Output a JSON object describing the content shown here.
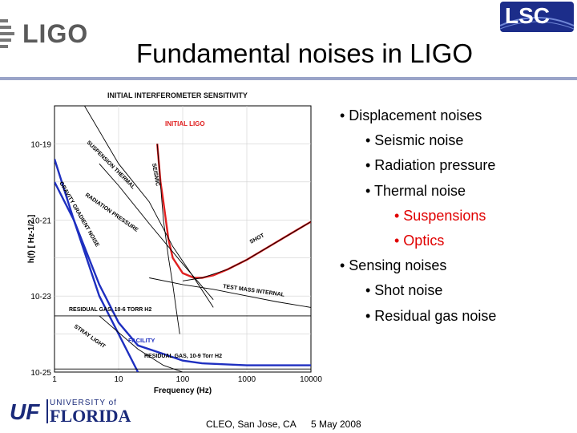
{
  "header": {
    "logo_left": "LIGO",
    "logo_right": "LSC",
    "title": "Fundamental noises in LIGO"
  },
  "bullets": [
    {
      "text": "• Displacement noises",
      "level": 0,
      "color": "#000000"
    },
    {
      "text": "• Seismic noise",
      "level": 1,
      "color": "#000000"
    },
    {
      "text": "• Radiation pressure",
      "level": 1,
      "color": "#000000"
    },
    {
      "text": "• Thermal noise",
      "level": 1,
      "color": "#000000"
    },
    {
      "text": "• Suspensions",
      "level": 2,
      "color": "#e00000"
    },
    {
      "text": "• Optics",
      "level": 2,
      "color": "#e00000"
    },
    {
      "text": "• Sensing noises",
      "level": 0,
      "color": "#000000"
    },
    {
      "text": "• Shot noise",
      "level": 1,
      "color": "#000000"
    },
    {
      "text": "• Residual gas noise",
      "level": 1,
      "color": "#000000"
    }
  ],
  "footer": {
    "conference": "CLEO, San Jose, CA",
    "date": "5 May 2008",
    "university_small": "UNIVERSITY of",
    "university_big": "FLORIDA",
    "university_letters": "UF"
  },
  "chart_data": {
    "type": "line",
    "title": "INITIAL INTERFEROMETER SENSITIVITY",
    "xlabel": "Frequency (Hz)",
    "ylabel": "h(f) [ Hz-1/2 ]",
    "xscale": "log",
    "yscale": "log",
    "xlim": [
      1,
      10000
    ],
    "ylim": [
      1e-25,
      1e-18
    ],
    "xticks": [
      "1",
      "10",
      "100",
      "1000",
      "10000"
    ],
    "yticks": [
      "10-19",
      "10-21",
      "10-23",
      "10-25"
    ],
    "annotations": [
      "INITIAL LIGO",
      "SEISMIC",
      "SUSPENSION THERMAL",
      "RADIATION PRESSURE",
      "GRAVITY GRADIENT NOISE",
      "SHOT",
      "TEST MASS INTERNAL",
      "RESIDUAL GAS, 10-6 TORR H2",
      "STRAY LIGHT",
      "FACILITY",
      "RESIDUAL GAS, 10-9 Torr H2"
    ],
    "series": [
      {
        "name": "INITIAL LIGO",
        "color": "#e02020",
        "x": [
          40,
          45,
          50,
          60,
          70,
          100,
          150,
          200,
          300,
          500,
          1000,
          2000,
          5000,
          10000
        ],
        "y": [
          1e-19,
          1e-20,
          3e-21,
          3e-22,
          1e-22,
          4e-23,
          3e-23,
          3e-23,
          3.5e-23,
          5e-23,
          9e-23,
          1.8e-22,
          4.5e-22,
          9e-22
        ]
      },
      {
        "name": "FACILITY",
        "color": "#1e2fc0",
        "x": [
          1,
          2,
          5,
          10,
          20,
          50,
          100,
          200,
          1000,
          10000
        ],
        "y": [
          1e-20,
          1e-21,
          2e-23,
          2e-24,
          5e-25,
          3e-25,
          2e-25,
          1.7e-25,
          1.5e-25,
          1.5e-25
        ]
      },
      {
        "name": "GRAVITY GRADIENT NOISE",
        "color": "#1e2fc0",
        "x": [
          1,
          2,
          5,
          10,
          20
        ],
        "y": [
          4e-20,
          1e-21,
          1e-23,
          1e-24,
          1e-25
        ]
      },
      {
        "name": "SEISMIC",
        "color": "#000000",
        "x": [
          40,
          50,
          60,
          70,
          80,
          90
        ],
        "y": [
          1e-19,
          1e-21,
          1e-22,
          2e-23,
          4e-24,
          1e-24
        ]
      },
      {
        "name": "SUSPENSION THERMAL",
        "color": "#000000",
        "x": [
          2,
          10,
          30,
          70,
          150,
          300
        ],
        "y": [
          3e-18,
          3e-20,
          3e-21,
          2e-22,
          3e-23,
          5e-24
        ]
      },
      {
        "name": "RADIATION PRESSURE",
        "color": "#000000",
        "x": [
          5,
          10,
          30,
          100,
          300
        ],
        "y": [
          3e-20,
          8e-21,
          8e-22,
          7e-23,
          8e-24
        ]
      },
      {
        "name": "SHOT",
        "color": "#000000",
        "x": [
          100,
          200,
          500,
          1000,
          10000
        ],
        "y": [
          2.5e-23,
          3e-23,
          5e-23,
          9e-23,
          9e-22
        ]
      },
      {
        "name": "TEST MASS INTERNAL",
        "color": "#000000",
        "x": [
          30,
          100,
          300,
          1000,
          3000,
          10000
        ],
        "y": [
          3e-23,
          2e-23,
          1.5e-23,
          1e-23,
          7e-24,
          5e-24
        ]
      },
      {
        "name": "RESIDUAL GAS, 10-6 TORR H2",
        "color": "#000000",
        "x": [
          1,
          10000
        ],
        "y": [
          3e-24,
          3e-24
        ]
      },
      {
        "name": "RESIDUAL GAS, 10-9 Torr H2",
        "color": "#000000",
        "x": [
          1,
          10000
        ],
        "y": [
          1.2e-25,
          1.2e-25
        ]
      },
      {
        "name": "STRAY LIGHT",
        "color": "#000000",
        "x": [
          5,
          20,
          50,
          100
        ],
        "y": [
          3e-24,
          4e-25,
          1.5e-25,
          1e-25
        ]
      }
    ]
  }
}
